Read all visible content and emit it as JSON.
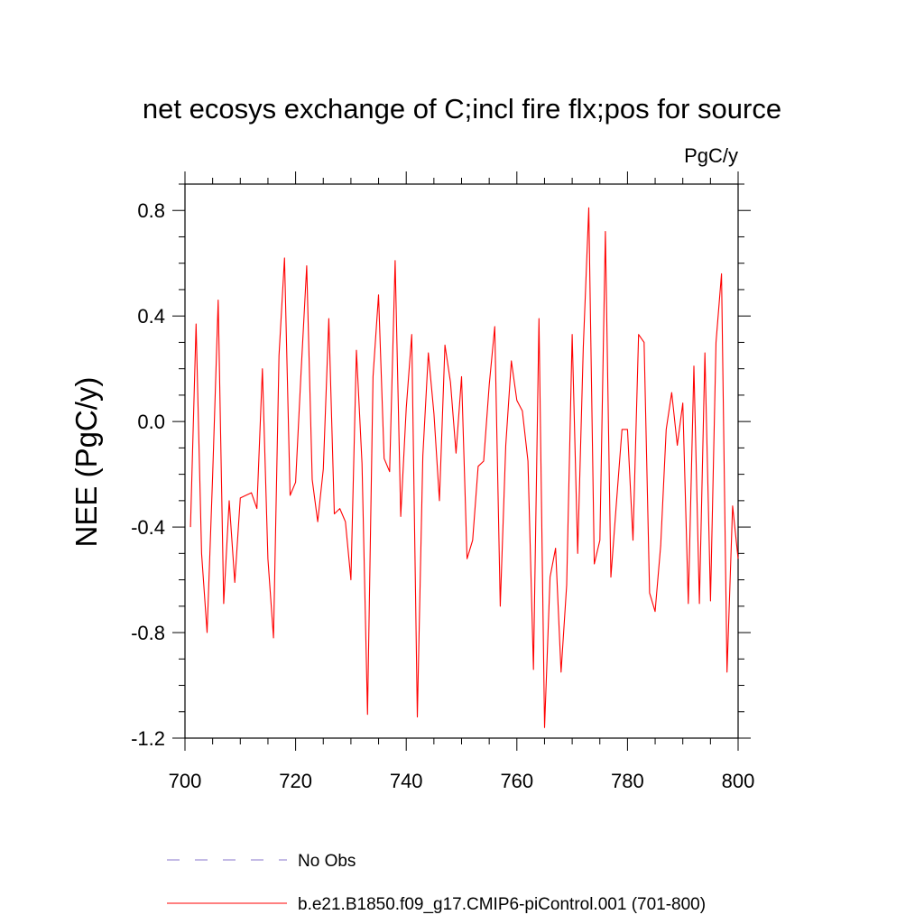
{
  "chart_data": {
    "type": "line",
    "title": "net ecosys exchange of C;incl fire flx;pos for source",
    "units_label": "PgC/y",
    "xlabel": "",
    "ylabel": "NEE  (PgC/y)",
    "xlim": [
      700,
      800
    ],
    "ylim": [
      -1.2,
      0.9
    ],
    "x_ticks": [
      700,
      720,
      740,
      760,
      780,
      800
    ],
    "x_tick_labels": [
      "700",
      "720",
      "740",
      "760",
      "780",
      "800"
    ],
    "y_ticks": [
      -1.2,
      -0.8,
      -0.4,
      0.0,
      0.4,
      0.8
    ],
    "y_tick_labels": [
      "-1.2",
      "-0.8",
      "-0.4",
      "0.0",
      "0.4",
      "0.8"
    ],
    "grid": false,
    "legend_position": "bottom",
    "series": [
      {
        "name": "No Obs",
        "color": "#8877cc",
        "style": "dashed",
        "x": [],
        "values": []
      },
      {
        "name": "b.e21.B1850.f09_g17.CMIP6-piControl.001 (701-800)",
        "color": "#ff0000",
        "style": "solid",
        "x": [
          701,
          702,
          703,
          704,
          705,
          706,
          707,
          708,
          709,
          710,
          711,
          712,
          713,
          714,
          715,
          716,
          717,
          718,
          719,
          720,
          721,
          722,
          723,
          724,
          725,
          726,
          727,
          728,
          729,
          730,
          731,
          732,
          733,
          734,
          735,
          736,
          737,
          738,
          739,
          740,
          741,
          742,
          743,
          744,
          745,
          746,
          747,
          748,
          749,
          750,
          751,
          752,
          753,
          754,
          755,
          756,
          757,
          758,
          759,
          760,
          761,
          762,
          763,
          764,
          765,
          766,
          767,
          768,
          769,
          770,
          771,
          772,
          773,
          774,
          775,
          776,
          777,
          778,
          779,
          780,
          781,
          782,
          783,
          784,
          785,
          786,
          787,
          788,
          789,
          790,
          791,
          792,
          793,
          794,
          795,
          796,
          797,
          798,
          799,
          800
        ],
        "values": [
          -0.4,
          0.37,
          -0.5,
          -0.8,
          -0.2,
          0.46,
          -0.69,
          -0.3,
          -0.61,
          -0.29,
          -0.28,
          -0.27,
          -0.33,
          0.2,
          -0.52,
          -0.82,
          0.25,
          0.62,
          -0.28,
          -0.23,
          0.19,
          0.59,
          -0.22,
          -0.38,
          -0.18,
          0.39,
          -0.35,
          -0.33,
          -0.38,
          -0.6,
          0.27,
          -0.16,
          -1.11,
          0.17,
          0.48,
          -0.14,
          -0.19,
          0.61,
          -0.36,
          0.05,
          0.33,
          -1.12,
          -0.13,
          0.26,
          0.03,
          -0.3,
          0.29,
          0.15,
          -0.12,
          0.17,
          -0.52,
          -0.45,
          -0.17,
          -0.15,
          0.14,
          0.36,
          -0.7,
          -0.09,
          0.23,
          0.08,
          0.04,
          -0.15,
          -0.94,
          0.39,
          -1.16,
          -0.59,
          -0.48,
          -0.95,
          -0.62,
          0.33,
          -0.5,
          0.28,
          0.81,
          -0.54,
          -0.45,
          0.72,
          -0.59,
          -0.31,
          -0.03,
          -0.03,
          -0.45,
          0.33,
          0.3,
          -0.65,
          -0.72,
          -0.47,
          -0.03,
          0.11,
          -0.09,
          0.07,
          -0.69,
          0.21,
          -0.69,
          0.26,
          -0.68,
          0.3,
          0.56,
          -0.95,
          -0.32,
          -0.52
        ]
      }
    ]
  }
}
